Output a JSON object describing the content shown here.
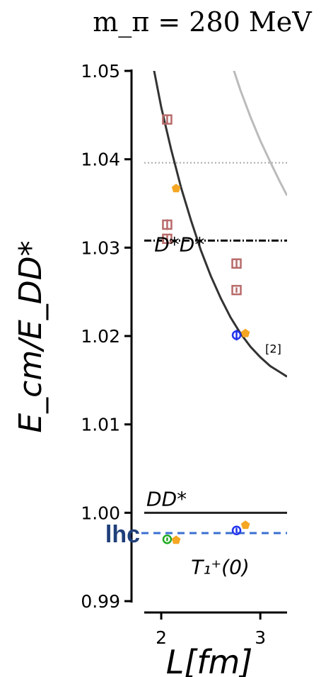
{
  "chart_data": {
    "type": "scatter",
    "title": "m_π = 280 MeV",
    "ylabel": "E_cm/E_DD*",
    "xlabel": "L[fm]",
    "xlim": [
      1.7,
      3.27
    ],
    "ylim": [
      0.99,
      1.05
    ],
    "yticks": [
      0.99,
      1.0,
      1.01,
      1.02,
      1.03,
      1.04,
      1.05
    ],
    "ytick_labels": [
      "0.99",
      "1.00",
      "1.01",
      "1.02",
      "1.03",
      "1.04",
      "1.05"
    ],
    "xticks": [
      2,
      3
    ],
    "xtick_labels": [
      "2",
      "3"
    ],
    "thresholds": [
      {
        "label": "DD*",
        "y": 1.0,
        "style": "solid",
        "color": "#222222"
      },
      {
        "label": "D*D*",
        "y": 1.0308,
        "style": "dashdot",
        "color": "#111111"
      },
      {
        "label": "",
        "y": 1.0396,
        "style": "dotted",
        "color": "#aaaaaa"
      }
    ],
    "lhc_line": {
      "label": "lhc",
      "y": 0.9977,
      "style": "dashed",
      "color": "#3b6fd1"
    },
    "curves": [
      {
        "label": "[2]",
        "color": "#333333",
        "points": [
          [
            1.92,
            1.0505
          ],
          [
            2.0,
            1.0459
          ],
          [
            2.1,
            1.0411
          ],
          [
            2.2,
            1.0368
          ],
          [
            2.3,
            1.0331
          ],
          [
            2.4,
            1.0297
          ],
          [
            2.5,
            1.0268
          ],
          [
            2.6,
            1.0243
          ],
          [
            2.7,
            1.0221
          ],
          [
            2.8,
            1.0203
          ],
          [
            2.9,
            1.0188
          ],
          [
            3.0,
            1.0176
          ],
          [
            3.1,
            1.0166
          ],
          [
            3.2,
            1.0159
          ],
          [
            3.27,
            1.0154
          ]
        ]
      },
      {
        "label": "",
        "color": "#bbbbbb",
        "points": [
          [
            2.72,
            1.0505
          ],
          [
            2.8,
            1.0478
          ],
          [
            2.9,
            1.0448
          ],
          [
            3.0,
            1.0421
          ],
          [
            3.1,
            1.0397
          ],
          [
            3.2,
            1.0374
          ],
          [
            3.27,
            1.0359
          ]
        ]
      }
    ],
    "series": [
      {
        "marker": "square",
        "color": "#b86a6a",
        "x": [
          2.06,
          2.06,
          2.06,
          2.76,
          2.76
        ],
        "y": [
          1.0445,
          1.0326,
          1.031,
          1.0282,
          1.0252
        ],
        "yerr": [
          0.0004,
          0.0006,
          0.0005,
          0.0004,
          0.0003
        ]
      },
      {
        "marker": "pentagon",
        "color": "#f5a623",
        "x": [
          2.15,
          2.85,
          2.15,
          2.85
        ],
        "y": [
          1.0367,
          1.0203,
          0.9969,
          0.9986
        ],
        "yerr": [
          0,
          0,
          0,
          0
        ]
      },
      {
        "marker": "circle",
        "color": "#2233ee",
        "x": [
          2.76,
          2.76
        ],
        "y": [
          1.0201,
          0.998
        ],
        "yerr": [
          0.0006,
          0.0003
        ]
      },
      {
        "marker": "circle",
        "color": "#22aa22",
        "x": [
          2.06
        ],
        "y": [
          0.997
        ],
        "yerr": [
          0.0002
        ]
      }
    ],
    "annotations": [
      {
        "text": "T₁⁺(0)",
        "x": 2.3,
        "y": 0.9931
      },
      {
        "text": "D*D*",
        "x": 1.93,
        "y": 1.0296
      },
      {
        "text": "DD*",
        "x": 1.85,
        "y": 1.0008
      },
      {
        "text": "[2]",
        "x": 3.05,
        "y": 1.0181
      }
    ],
    "grid": false,
    "legend": "none"
  }
}
